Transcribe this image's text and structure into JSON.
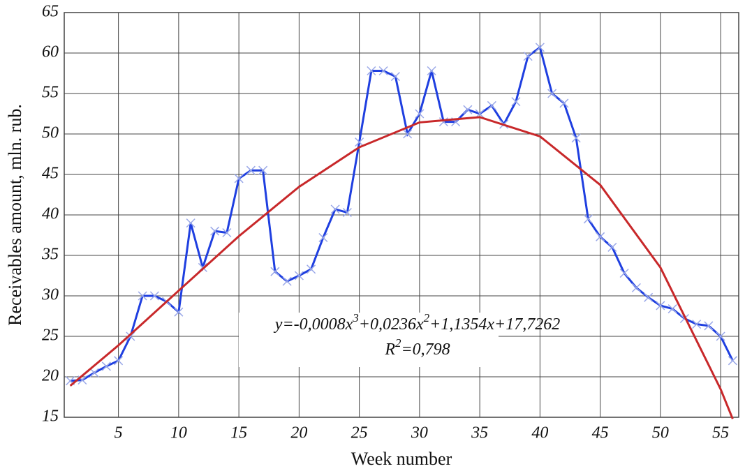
{
  "chart_data": {
    "type": "line",
    "xlabel": "Week number",
    "ylabel": "Receivables amount, mln. rub.",
    "x": [
      1,
      2,
      3,
      4,
      5,
      6,
      7,
      8,
      9,
      10,
      11,
      12,
      13,
      14,
      15,
      16,
      17,
      18,
      19,
      20,
      21,
      22,
      23,
      24,
      25,
      26,
      27,
      28,
      29,
      30,
      31,
      32,
      33,
      34,
      35,
      36,
      37,
      38,
      39,
      40,
      41,
      42,
      43,
      44,
      45,
      46,
      47,
      48,
      49,
      50,
      51,
      52,
      53,
      54,
      55,
      56
    ],
    "series": [
      {
        "color": "#1f3fe0",
        "marker": "x",
        "marker_color": "#9aa8e8",
        "values": [
          19.5,
          19.6,
          20.5,
          21.3,
          22,
          25,
          30,
          30,
          29.3,
          28,
          39,
          33.5,
          38,
          37.8,
          44.5,
          45.5,
          45.5,
          33,
          31.8,
          32.5,
          33.3,
          37.2,
          40.7,
          40.3,
          49,
          57.8,
          57.8,
          57.1,
          50,
          52.5,
          57.8,
          51.5,
          51.5,
          53,
          52.5,
          53.5,
          51.2,
          54,
          59.6,
          60.7,
          55,
          53.8,
          49.5,
          39.5,
          37.3,
          36,
          32.8,
          31,
          29.8,
          28.8,
          28.4,
          27.2,
          26.5,
          26.3,
          25,
          22
        ]
      },
      {
        "color": "#c8282a",
        "x": [
          1,
          5,
          10,
          15,
          20,
          25,
          30,
          35,
          40,
          45,
          50,
          55,
          56
        ],
        "values": [
          18.89,
          23.89,
          30.64,
          37.37,
          43.47,
          48.36,
          51.43,
          52.08,
          49.7,
          43.71,
          33.5,
          18.46,
          14.8
        ]
      }
    ],
    "equation": [
      "y=-0,0008x",
      "3",
      "+0,0236x",
      "2",
      "+1,1354x+17,7262"
    ],
    "r2": [
      "R",
      "2",
      "=0,798"
    ],
    "xlim": [
      0.5,
      56.5
    ],
    "xticks": [
      5,
      10,
      15,
      20,
      25,
      30,
      35,
      40,
      45,
      50,
      55
    ],
    "ylim": [
      15,
      65
    ],
    "yticks": [
      15,
      20,
      25,
      30,
      35,
      40,
      45,
      50,
      55,
      60,
      65
    ],
    "grid": true
  }
}
